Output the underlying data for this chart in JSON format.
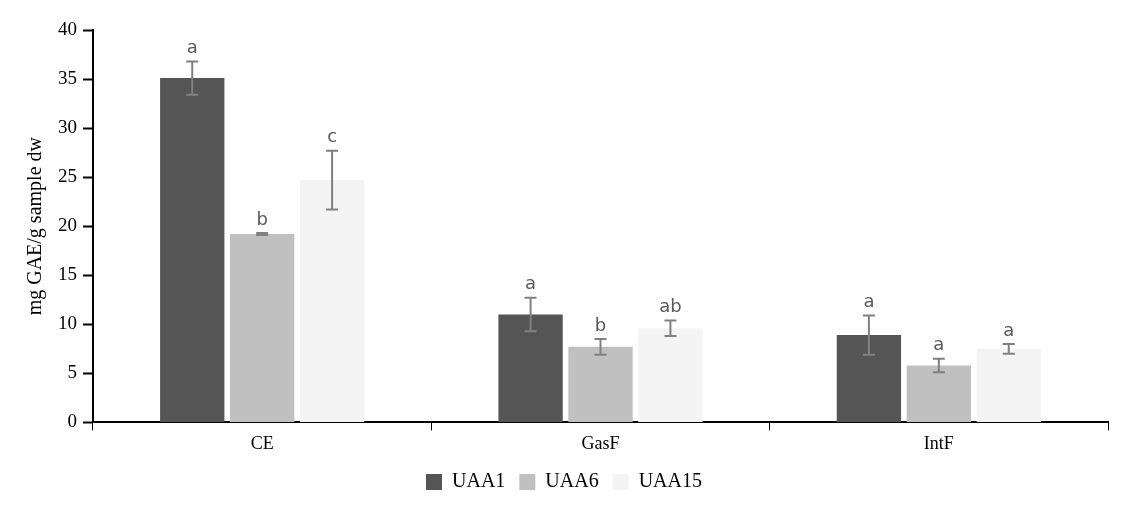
{
  "chart_data": {
    "type": "bar",
    "ylabel": "mg GAE/g sample dw",
    "categories": [
      "CE",
      "GasF",
      "IntF"
    ],
    "series": [
      {
        "name": "UAA1",
        "color": "#555555",
        "values": [
          35.1,
          11.0,
          8.9
        ],
        "errors": [
          1.7,
          1.7,
          2.0
        ],
        "value_labels": [
          "a",
          "a",
          "a"
        ]
      },
      {
        "name": "UAA6",
        "color": "#c0c0c0",
        "values": [
          19.2,
          7.7,
          5.8
        ],
        "errors": [
          0.1,
          0.8,
          0.7
        ],
        "value_labels": [
          "b",
          "b",
          "a"
        ]
      },
      {
        "name": "UAA15",
        "color": "#f4f4f4",
        "values": [
          24.7,
          9.6,
          7.5
        ],
        "errors": [
          3.0,
          0.8,
          0.5
        ],
        "value_labels": [
          "c",
          "ab",
          "a"
        ]
      }
    ],
    "ylim": [
      0,
      40
    ],
    "yticks": [
      0,
      5,
      10,
      15,
      20,
      25,
      30,
      35,
      40
    ],
    "grid": false,
    "legend": "bottom"
  }
}
